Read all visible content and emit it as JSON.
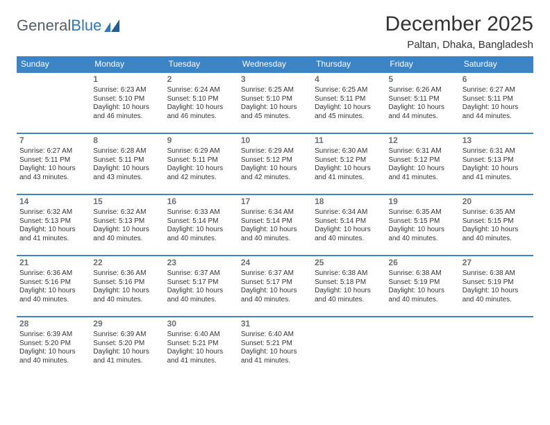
{
  "brand": {
    "part1": "General",
    "part2": "Blue"
  },
  "title": "December 2025",
  "location": "Paltan, Dhaka, Bangladesh",
  "colors": {
    "header_bg": "#3c84c3",
    "header_text": "#ffffff",
    "row_border": "#3c84c3",
    "daynum_color": "#6a6f75",
    "body_text": "#333333",
    "logo_gray": "#555c63",
    "logo_blue": "#2f77b5",
    "page_bg": "#ffffff"
  },
  "day_headers": [
    "Sunday",
    "Monday",
    "Tuesday",
    "Wednesday",
    "Thursday",
    "Friday",
    "Saturday"
  ],
  "weeks": [
    [
      null,
      {
        "n": "1",
        "sr": "Sunrise: 6:23 AM",
        "ss": "Sunset: 5:10 PM",
        "dl": "Daylight: 10 hours and 46 minutes."
      },
      {
        "n": "2",
        "sr": "Sunrise: 6:24 AM",
        "ss": "Sunset: 5:10 PM",
        "dl": "Daylight: 10 hours and 46 minutes."
      },
      {
        "n": "3",
        "sr": "Sunrise: 6:25 AM",
        "ss": "Sunset: 5:10 PM",
        "dl": "Daylight: 10 hours and 45 minutes."
      },
      {
        "n": "4",
        "sr": "Sunrise: 6:25 AM",
        "ss": "Sunset: 5:11 PM",
        "dl": "Daylight: 10 hours and 45 minutes."
      },
      {
        "n": "5",
        "sr": "Sunrise: 6:26 AM",
        "ss": "Sunset: 5:11 PM",
        "dl": "Daylight: 10 hours and 44 minutes."
      },
      {
        "n": "6",
        "sr": "Sunrise: 6:27 AM",
        "ss": "Sunset: 5:11 PM",
        "dl": "Daylight: 10 hours and 44 minutes."
      }
    ],
    [
      {
        "n": "7",
        "sr": "Sunrise: 6:27 AM",
        "ss": "Sunset: 5:11 PM",
        "dl": "Daylight: 10 hours and 43 minutes."
      },
      {
        "n": "8",
        "sr": "Sunrise: 6:28 AM",
        "ss": "Sunset: 5:11 PM",
        "dl": "Daylight: 10 hours and 43 minutes."
      },
      {
        "n": "9",
        "sr": "Sunrise: 6:29 AM",
        "ss": "Sunset: 5:11 PM",
        "dl": "Daylight: 10 hours and 42 minutes."
      },
      {
        "n": "10",
        "sr": "Sunrise: 6:29 AM",
        "ss": "Sunset: 5:12 PM",
        "dl": "Daylight: 10 hours and 42 minutes."
      },
      {
        "n": "11",
        "sr": "Sunrise: 6:30 AM",
        "ss": "Sunset: 5:12 PM",
        "dl": "Daylight: 10 hours and 41 minutes."
      },
      {
        "n": "12",
        "sr": "Sunrise: 6:31 AM",
        "ss": "Sunset: 5:12 PM",
        "dl": "Daylight: 10 hours and 41 minutes."
      },
      {
        "n": "13",
        "sr": "Sunrise: 6:31 AM",
        "ss": "Sunset: 5:13 PM",
        "dl": "Daylight: 10 hours and 41 minutes."
      }
    ],
    [
      {
        "n": "14",
        "sr": "Sunrise: 6:32 AM",
        "ss": "Sunset: 5:13 PM",
        "dl": "Daylight: 10 hours and 41 minutes."
      },
      {
        "n": "15",
        "sr": "Sunrise: 6:32 AM",
        "ss": "Sunset: 5:13 PM",
        "dl": "Daylight: 10 hours and 40 minutes."
      },
      {
        "n": "16",
        "sr": "Sunrise: 6:33 AM",
        "ss": "Sunset: 5:14 PM",
        "dl": "Daylight: 10 hours and 40 minutes."
      },
      {
        "n": "17",
        "sr": "Sunrise: 6:34 AM",
        "ss": "Sunset: 5:14 PM",
        "dl": "Daylight: 10 hours and 40 minutes."
      },
      {
        "n": "18",
        "sr": "Sunrise: 6:34 AM",
        "ss": "Sunset: 5:14 PM",
        "dl": "Daylight: 10 hours and 40 minutes."
      },
      {
        "n": "19",
        "sr": "Sunrise: 6:35 AM",
        "ss": "Sunset: 5:15 PM",
        "dl": "Daylight: 10 hours and 40 minutes."
      },
      {
        "n": "20",
        "sr": "Sunrise: 6:35 AM",
        "ss": "Sunset: 5:15 PM",
        "dl": "Daylight: 10 hours and 40 minutes."
      }
    ],
    [
      {
        "n": "21",
        "sr": "Sunrise: 6:36 AM",
        "ss": "Sunset: 5:16 PM",
        "dl": "Daylight: 10 hours and 40 minutes."
      },
      {
        "n": "22",
        "sr": "Sunrise: 6:36 AM",
        "ss": "Sunset: 5:16 PM",
        "dl": "Daylight: 10 hours and 40 minutes."
      },
      {
        "n": "23",
        "sr": "Sunrise: 6:37 AM",
        "ss": "Sunset: 5:17 PM",
        "dl": "Daylight: 10 hours and 40 minutes."
      },
      {
        "n": "24",
        "sr": "Sunrise: 6:37 AM",
        "ss": "Sunset: 5:17 PM",
        "dl": "Daylight: 10 hours and 40 minutes."
      },
      {
        "n": "25",
        "sr": "Sunrise: 6:38 AM",
        "ss": "Sunset: 5:18 PM",
        "dl": "Daylight: 10 hours and 40 minutes."
      },
      {
        "n": "26",
        "sr": "Sunrise: 6:38 AM",
        "ss": "Sunset: 5:19 PM",
        "dl": "Daylight: 10 hours and 40 minutes."
      },
      {
        "n": "27",
        "sr": "Sunrise: 6:38 AM",
        "ss": "Sunset: 5:19 PM",
        "dl": "Daylight: 10 hours and 40 minutes."
      }
    ],
    [
      {
        "n": "28",
        "sr": "Sunrise: 6:39 AM",
        "ss": "Sunset: 5:20 PM",
        "dl": "Daylight: 10 hours and 40 minutes."
      },
      {
        "n": "29",
        "sr": "Sunrise: 6:39 AM",
        "ss": "Sunset: 5:20 PM",
        "dl": "Daylight: 10 hours and 41 minutes."
      },
      {
        "n": "30",
        "sr": "Sunrise: 6:40 AM",
        "ss": "Sunset: 5:21 PM",
        "dl": "Daylight: 10 hours and 41 minutes."
      },
      {
        "n": "31",
        "sr": "Sunrise: 6:40 AM",
        "ss": "Sunset: 5:21 PM",
        "dl": "Daylight: 10 hours and 41 minutes."
      },
      null,
      null,
      null
    ]
  ]
}
